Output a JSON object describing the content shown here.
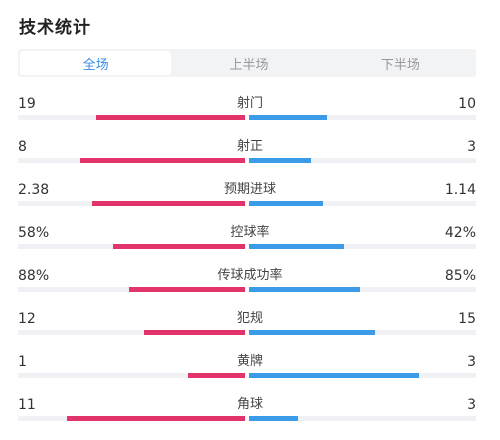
{
  "header": {
    "title": "技术统计"
  },
  "tabs": [
    {
      "label": "全场",
      "active": true
    },
    {
      "label": "上半场",
      "active": false
    },
    {
      "label": "下半场",
      "active": false
    }
  ],
  "colors": {
    "home": "#e3336b",
    "away": "#3b9be8",
    "accent": "#3a8ee6"
  },
  "stats": [
    {
      "label": "射门",
      "home": "19",
      "away": "10",
      "home_share": 0.655,
      "away_share": 0.345
    },
    {
      "label": "射正",
      "home": "8",
      "away": "3",
      "home_share": 0.727,
      "away_share": 0.273
    },
    {
      "label": "预期进球",
      "home": "2.38",
      "away": "1.14",
      "home_share": 0.676,
      "away_share": 0.324
    },
    {
      "label": "控球率",
      "home": "58%",
      "away": "42%",
      "home_share": 0.58,
      "away_share": 0.42
    },
    {
      "label": "传球成功率",
      "home": "88%",
      "away": "85%",
      "home_share": 0.509,
      "away_share": 0.491
    },
    {
      "label": "犯规",
      "home": "12",
      "away": "15",
      "home_share": 0.444,
      "away_share": 0.556
    },
    {
      "label": "黄牌",
      "home": "1",
      "away": "3",
      "home_share": 0.25,
      "away_share": 0.75
    },
    {
      "label": "角球",
      "home": "11",
      "away": "3",
      "home_share": 0.786,
      "away_share": 0.214
    }
  ]
}
